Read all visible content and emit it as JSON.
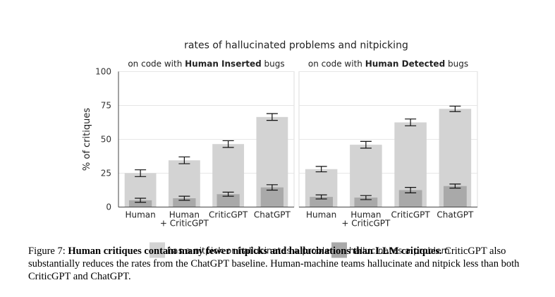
{
  "chart_data": {
    "type": "bar",
    "title": "rates of hallucinated problems and nitpicking",
    "ylabel": "% of critiques",
    "ylim": [
      0,
      100
    ],
    "yticks": [
      0,
      25,
      50,
      75,
      100
    ],
    "grid": true,
    "legend_position": "bottom",
    "legend": [
      {
        "label": "has a nitpick or hallucinates a problem",
        "color": "#d3d3d3"
      },
      {
        "label": "hallucinates a problem",
        "color": "#a9a9a9"
      }
    ],
    "panels": [
      {
        "subtitle_pre": "on code with ",
        "subtitle_bold": "Human Inserted",
        "subtitle_post": " bugs",
        "categories": [
          {
            "line1": "Human",
            "line2": ""
          },
          {
            "line1": "Human",
            "line2": "+ CriticGPT"
          },
          {
            "line1": "CriticGPT",
            "line2": ""
          },
          {
            "line1": "ChatGPT",
            "line2": ""
          }
        ],
        "series": [
          {
            "name": "has a nitpick or hallucinates a problem",
            "values": [
              25,
              34.5,
              46.5,
              66.5
            ],
            "errors": [
              2.5,
              2.5,
              2.5,
              2.5
            ]
          },
          {
            "name": "hallucinates a problem",
            "values": [
              5,
              6.5,
              9.5,
              14.5
            ],
            "errors": [
              1.5,
              1.5,
              1.5,
              2
            ]
          }
        ]
      },
      {
        "subtitle_pre": "on code with ",
        "subtitle_bold": "Human Detected",
        "subtitle_post": " bugs",
        "categories": [
          {
            "line1": "Human",
            "line2": ""
          },
          {
            "line1": "Human",
            "line2": "+ CriticGPT"
          },
          {
            "line1": "CriticGPT",
            "line2": ""
          },
          {
            "line1": "ChatGPT",
            "line2": ""
          }
        ],
        "series": [
          {
            "name": "has a nitpick or hallucinates a problem",
            "values": [
              28,
              46,
              62.5,
              72.5
            ],
            "errors": [
              2,
              2.5,
              2.5,
              2
            ]
          },
          {
            "name": "hallucinates a problem",
            "values": [
              7.5,
              7,
              12.5,
              15.5
            ],
            "errors": [
              1.5,
              1.5,
              2,
              1.5
            ]
          }
        ]
      }
    ]
  },
  "caption": {
    "label": "Figure 7: ",
    "bold": "Human critiques contain many fewer nitpicks and hallucinations than LLM critiques.",
    "rest": " CriticGPT also substantially reduces the rates from the ChatGPT baseline. Human-machine teams hallucinate and nitpick less than both CriticGPT and ChatGPT."
  }
}
